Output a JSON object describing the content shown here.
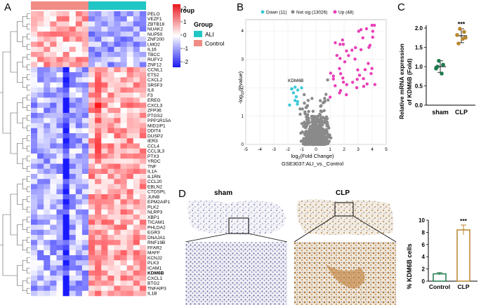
{
  "panels": {
    "a": "A",
    "b": "B",
    "c": "C",
    "d": "D"
  },
  "heatmap": {
    "legend_title": "Group",
    "legend_items": [
      {
        "label": "ALI",
        "color": "#1fc6c4"
      },
      {
        "label": "Control",
        "color": "#f08c84"
      }
    ],
    "scale_ticks": [
      "2",
      "1",
      "0",
      "-1",
      "-2"
    ],
    "scale_colors": {
      "high": "#e8171e",
      "mid": "#ffffff",
      "low": "#1a1aef"
    },
    "n_control": 9,
    "n_ali": 9,
    "genes": [
      "PELO",
      "VEZF1",
      "ZBTB18",
      "NUAK2",
      "NUP50",
      "ZNF200",
      "LMO2",
      "IL16",
      "TBCC",
      "RUFY2",
      "ZNF12",
      "CCNL1",
      "ETS2",
      "CXCL2",
      "SRSF3",
      "IL6",
      "F3",
      "EREG",
      "CXCL3",
      "ZFP36",
      "PTGS2",
      "PPP1R15A",
      "MID1IP1",
      "DDIT4",
      "DUSP2",
      "IER3",
      "CCL4",
      "CCL3L3",
      "PTX3",
      "YRDC",
      "TNF",
      "IL1A",
      "IL1RN",
      "CCL20",
      "EBLN2",
      "CTDSPL",
      "JUNB",
      "EPM2AIP1",
      "PLK2",
      "NLRP3",
      "XBP1",
      "TICAM1",
      "PHLDA2",
      "EGR3",
      "DNAJA1",
      "RNF19B",
      "FFAR2",
      "MAFF",
      "KCNJ2",
      "PLK3",
      "ICAM1",
      "KDM6B",
      "CXCL1",
      "BTG2",
      "TNFAIP3",
      "IL1B"
    ],
    "bold_gene": "KDM6B"
  },
  "volcano": {
    "legend": [
      {
        "label": "Down (11)",
        "color": "#3ec9d6"
      },
      {
        "label": "Not sig (13026)",
        "color": "#888888"
      },
      {
        "label": "Up (48)",
        "color": "#e83fb7"
      }
    ],
    "x_ticks": [
      "-5",
      "-4",
      "-3",
      "-2",
      "-1",
      "0",
      "1",
      "2",
      "3",
      "4",
      "5"
    ],
    "y_ticks": [
      "0",
      "1",
      "2",
      "3",
      "4"
    ],
    "xlabel": "log2(Fold Change)",
    "xlabel_main": "log",
    "xlabel_sub": "2",
    "xlabel_rest": "(Fold Change)",
    "ylabel_main": "-log",
    "ylabel_sub": "10",
    "ylabel_rest": "(Pvalue)",
    "title_bottom": "GSE3037:ALI_vs._Control",
    "annotation": "KDM6B"
  },
  "chart_data": [
    {
      "type": "scatter",
      "title": "Relative mRNA expression of KDM6B (Fold)",
      "ylabel": "Relative mRNA expression of KDM6B (Fold)",
      "categories": [
        "sham",
        "CLP"
      ],
      "y_ticks": [
        "0.0",
        "0.5",
        "1.0",
        "1.5",
        "2.0"
      ],
      "ylim": [
        0,
        2.0
      ],
      "series": [
        {
          "name": "sham",
          "color": "#1f7a4d",
          "mean": 1.0,
          "sd": 0.15,
          "values": [
            1.15,
            1.05,
            0.95,
            0.82,
            1.0
          ]
        },
        {
          "name": "CLP",
          "color": "#b8862f",
          "mean": 1.8,
          "sd": 0.18,
          "values": [
            1.98,
            1.9,
            1.82,
            1.72,
            1.6,
            1.75
          ]
        }
      ],
      "annotation": "***"
    },
    {
      "type": "bar",
      "ylabel": "% KDM6B cells",
      "categories": [
        "Control",
        "CLP"
      ],
      "values": [
        1.2,
        8.4
      ],
      "errors": [
        0.2,
        0.8
      ],
      "colors": [
        "#1f7a4d",
        "#b8862f"
      ],
      "y_ticks": [
        "0",
        "2",
        "4",
        "6",
        "8",
        "10"
      ],
      "ylim": [
        0,
        10
      ],
      "annotation": "***"
    }
  ],
  "histology": {
    "left_label": "sham",
    "right_label": "CLP"
  }
}
